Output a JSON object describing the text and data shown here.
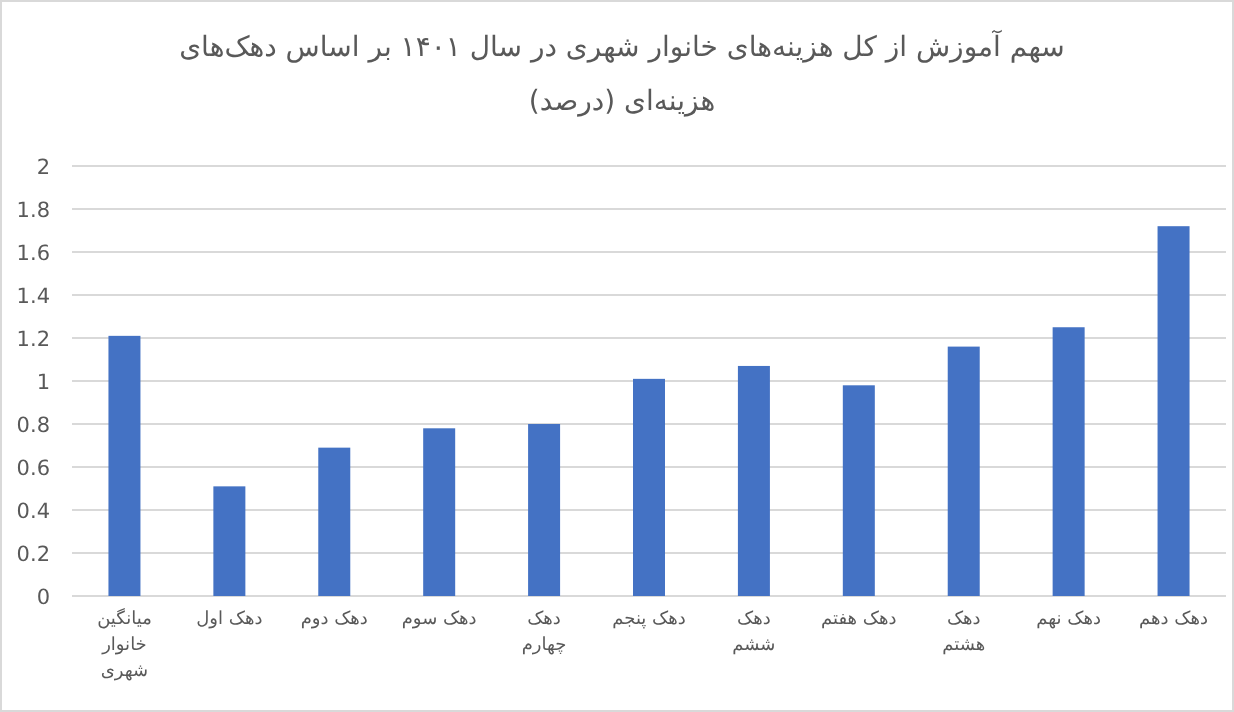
{
  "chart_data": {
    "type": "bar",
    "title": "سهم آموزش از کل هزینه‌های خانوار شهری در سال ۱۴۰۱ بر اساس دهک‌های هزینه‌ای (درصد)",
    "categories": [
      "میانگین خانوار شهری",
      "دهک اول",
      "دهک دوم",
      "دهک سوم",
      "دهک چهارم",
      "دهک پنجم",
      "دهک ششم",
      "دهک هفتم",
      "دهک هشتم",
      "دهک نهم",
      "دهک دهم"
    ],
    "values": [
      1.21,
      0.51,
      0.69,
      0.78,
      0.8,
      1.01,
      1.07,
      0.98,
      1.16,
      1.25,
      1.72
    ],
    "color": "#4472c4",
    "ylim": [
      0,
      2
    ],
    "yticks": [
      0,
      0.2,
      0.4,
      0.6,
      0.8,
      1,
      1.2,
      1.4,
      1.6,
      1.8,
      2
    ],
    "grid": "y"
  }
}
